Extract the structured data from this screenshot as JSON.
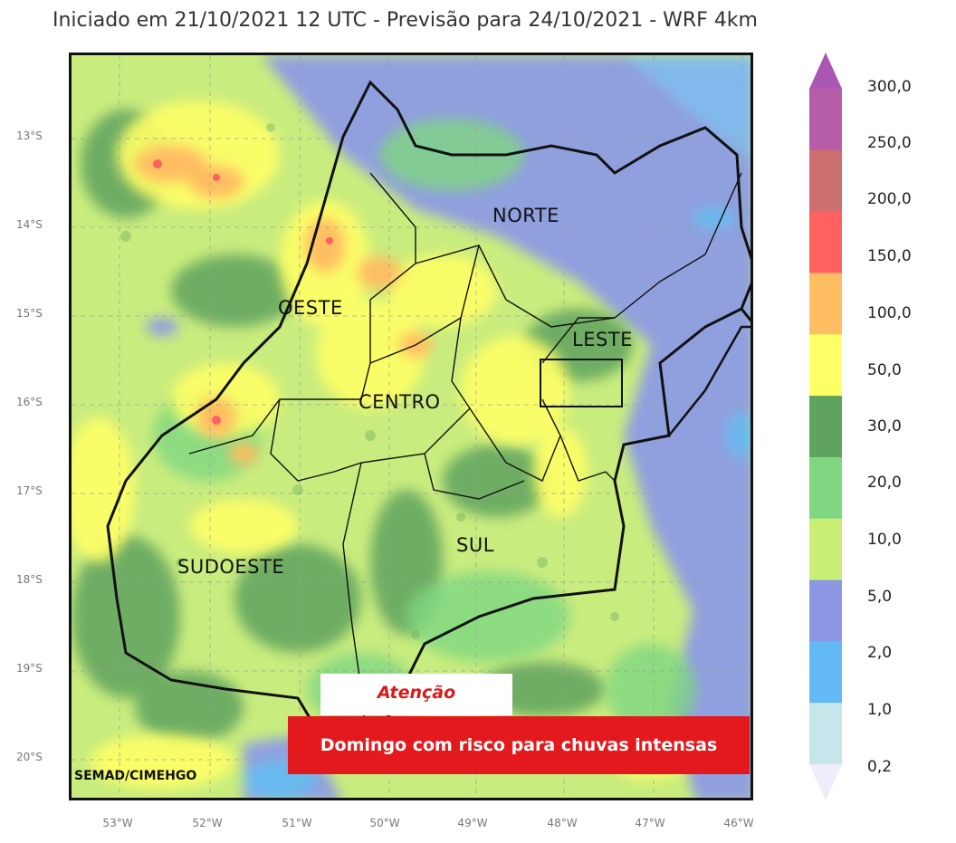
{
  "title": "Iniciado em 21/10/2021 12 UTC - Previsão para 24/10/2021 - WRF 4km",
  "latitude_labels": [
    "13°S",
    "14°S",
    "15°S",
    "16°S",
    "17°S",
    "18°S",
    "19°S",
    "20°S"
  ],
  "longitude_labels": [
    "53°W",
    "52°W",
    "51°W",
    "50°W",
    "49°W",
    "48°W",
    "47°W",
    "46°W"
  ],
  "regions": {
    "norte": "NORTE",
    "oeste": "OESTE",
    "leste": "LESTE",
    "centro": "CENTRO",
    "sul": "SUL",
    "sudoeste": "SUDOESTE"
  },
  "credit": "SEMAD/CIMEHGO",
  "attention": "Atenção",
  "alert": "Domingo com risco para chuvas intensas",
  "legend": {
    "labels": [
      "300,0",
      "250,0",
      "200,0",
      "150,0",
      "100,0",
      "50,0",
      "30,0",
      "20,0",
      "10,0",
      "5,0",
      "2,0",
      "1,0",
      "0,2"
    ],
    "colors": [
      "#a957b3",
      "#b75ca7",
      "#cc6f6f",
      "#ff6060",
      "#ffbe62",
      "#ffff66",
      "#5fa35f",
      "#7fd782",
      "#c9ef76",
      "#8b97e3",
      "#63b8f6",
      "#c7e6ec",
      "#eeeefa"
    ]
  }
}
